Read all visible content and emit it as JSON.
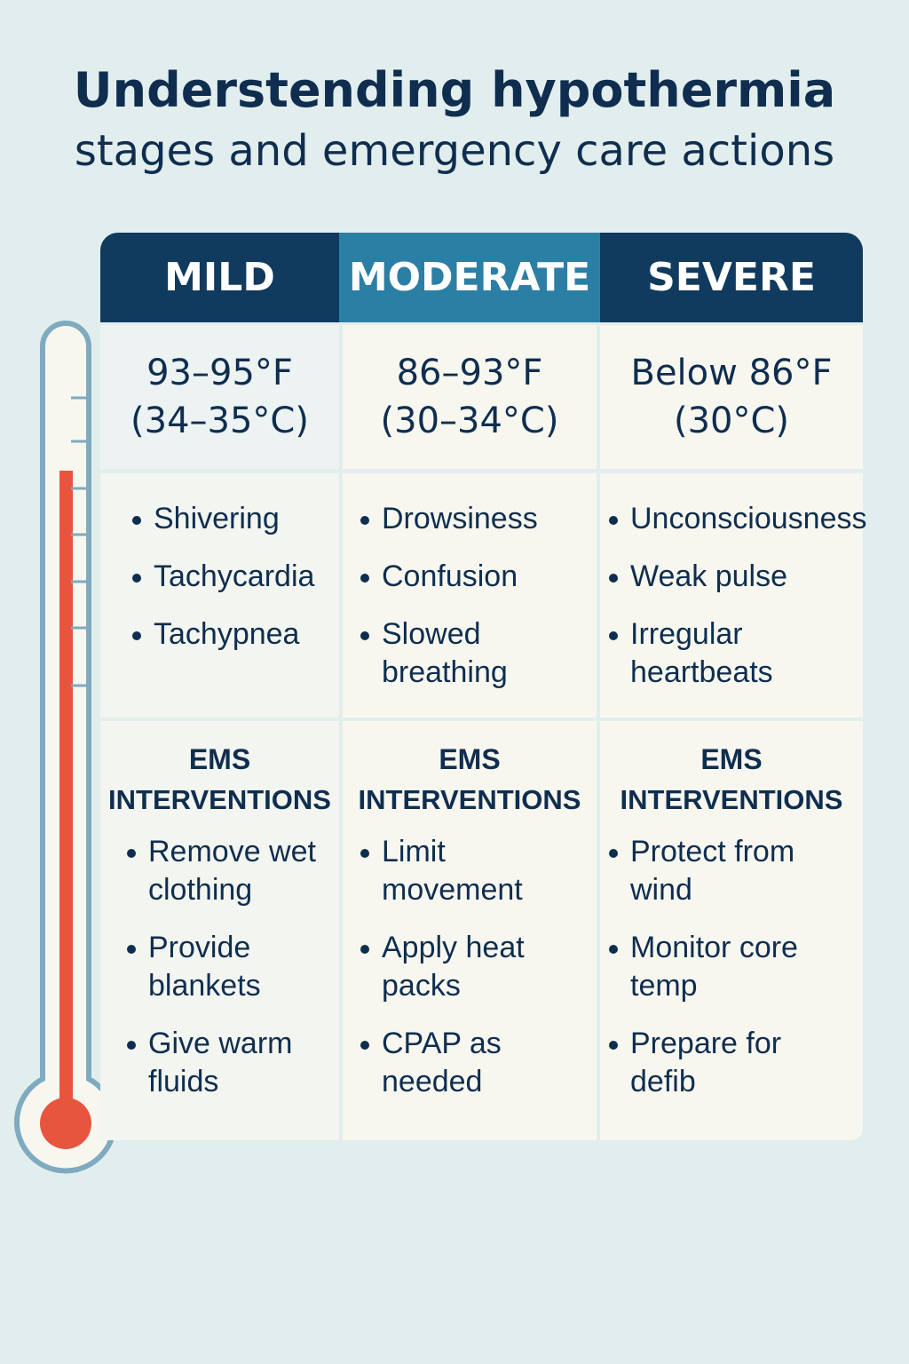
{
  "title": {
    "line1": "Understending hypothermia",
    "line2": "stages and emergency care actions"
  },
  "colors": {
    "mild": "#103a5e",
    "moderate": "#2c7fa4",
    "severe": "#103a5e",
    "mercury": "#e8553f"
  },
  "stages": [
    {
      "name": "MILD",
      "temp_f": "93–95°F",
      "temp_c": "(34–35°C)",
      "symptoms": [
        "Shivering",
        "Tachycardia",
        "Tachypnea"
      ],
      "ems_title": "EMS",
      "ems_sub": "INTERVENTIONS",
      "interventions": [
        "Remove wet clothing",
        "Provide blankets",
        "Give warm fluids"
      ]
    },
    {
      "name": "MODERATE",
      "temp_f": "86–93°F",
      "temp_c": "(30–34°C)",
      "symptoms": [
        "Drowsiness",
        "Confusion",
        "Slowed breathing"
      ],
      "ems_title": "EMS",
      "ems_sub": "INTERVENTIONS",
      "interventions": [
        "Limit movement",
        "Apply heat packs",
        "CPAP as needed"
      ]
    },
    {
      "name": "SEVERE",
      "temp_f": "Below 86°F",
      "temp_c": "(30°C)",
      "symptoms": [
        "Unconsciousness",
        "Weak pulse",
        "Irregular heartbeats"
      ],
      "ems_title": "EMS",
      "ems_sub": "INTERVENTIONS",
      "interventions": [
        "Protect from wind",
        "Monitor core temp",
        "Prepare for defib"
      ]
    }
  ]
}
